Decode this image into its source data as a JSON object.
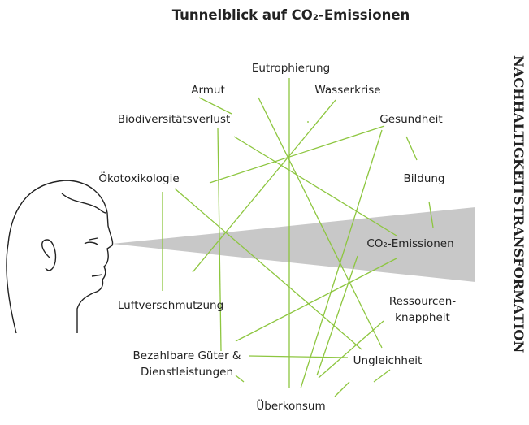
{
  "title": "Tunnelblick auf CO₂-Emissionen",
  "side_label": "NACHHALTIGKEITSTRANSFORMATION",
  "nodes": [
    {
      "label": [
        "Eutrophierung"
      ]
    },
    {
      "label": [
        "Armut"
      ]
    },
    {
      "label": [
        "Wasserkrise"
      ]
    },
    {
      "label": [
        "Biodiversitätsverlust"
      ]
    },
    {
      "label": [
        "Gesundheit"
      ]
    },
    {
      "label": [
        "Ökotoxikologie"
      ]
    },
    {
      "label": [
        "Bildung"
      ]
    },
    {
      "label": [
        "CO₂-Emissionen"
      ]
    },
    {
      "label": [
        "Luftverschmutzung"
      ]
    },
    {
      "label": [
        "Ressourcen-",
        "knappheit"
      ]
    },
    {
      "label": [
        "Bezahlbare Güter &",
        "Dienstleistungen"
      ]
    },
    {
      "label": [
        "Ungleichheit"
      ]
    },
    {
      "label": [
        "Überkonsum"
      ]
    }
  ]
}
